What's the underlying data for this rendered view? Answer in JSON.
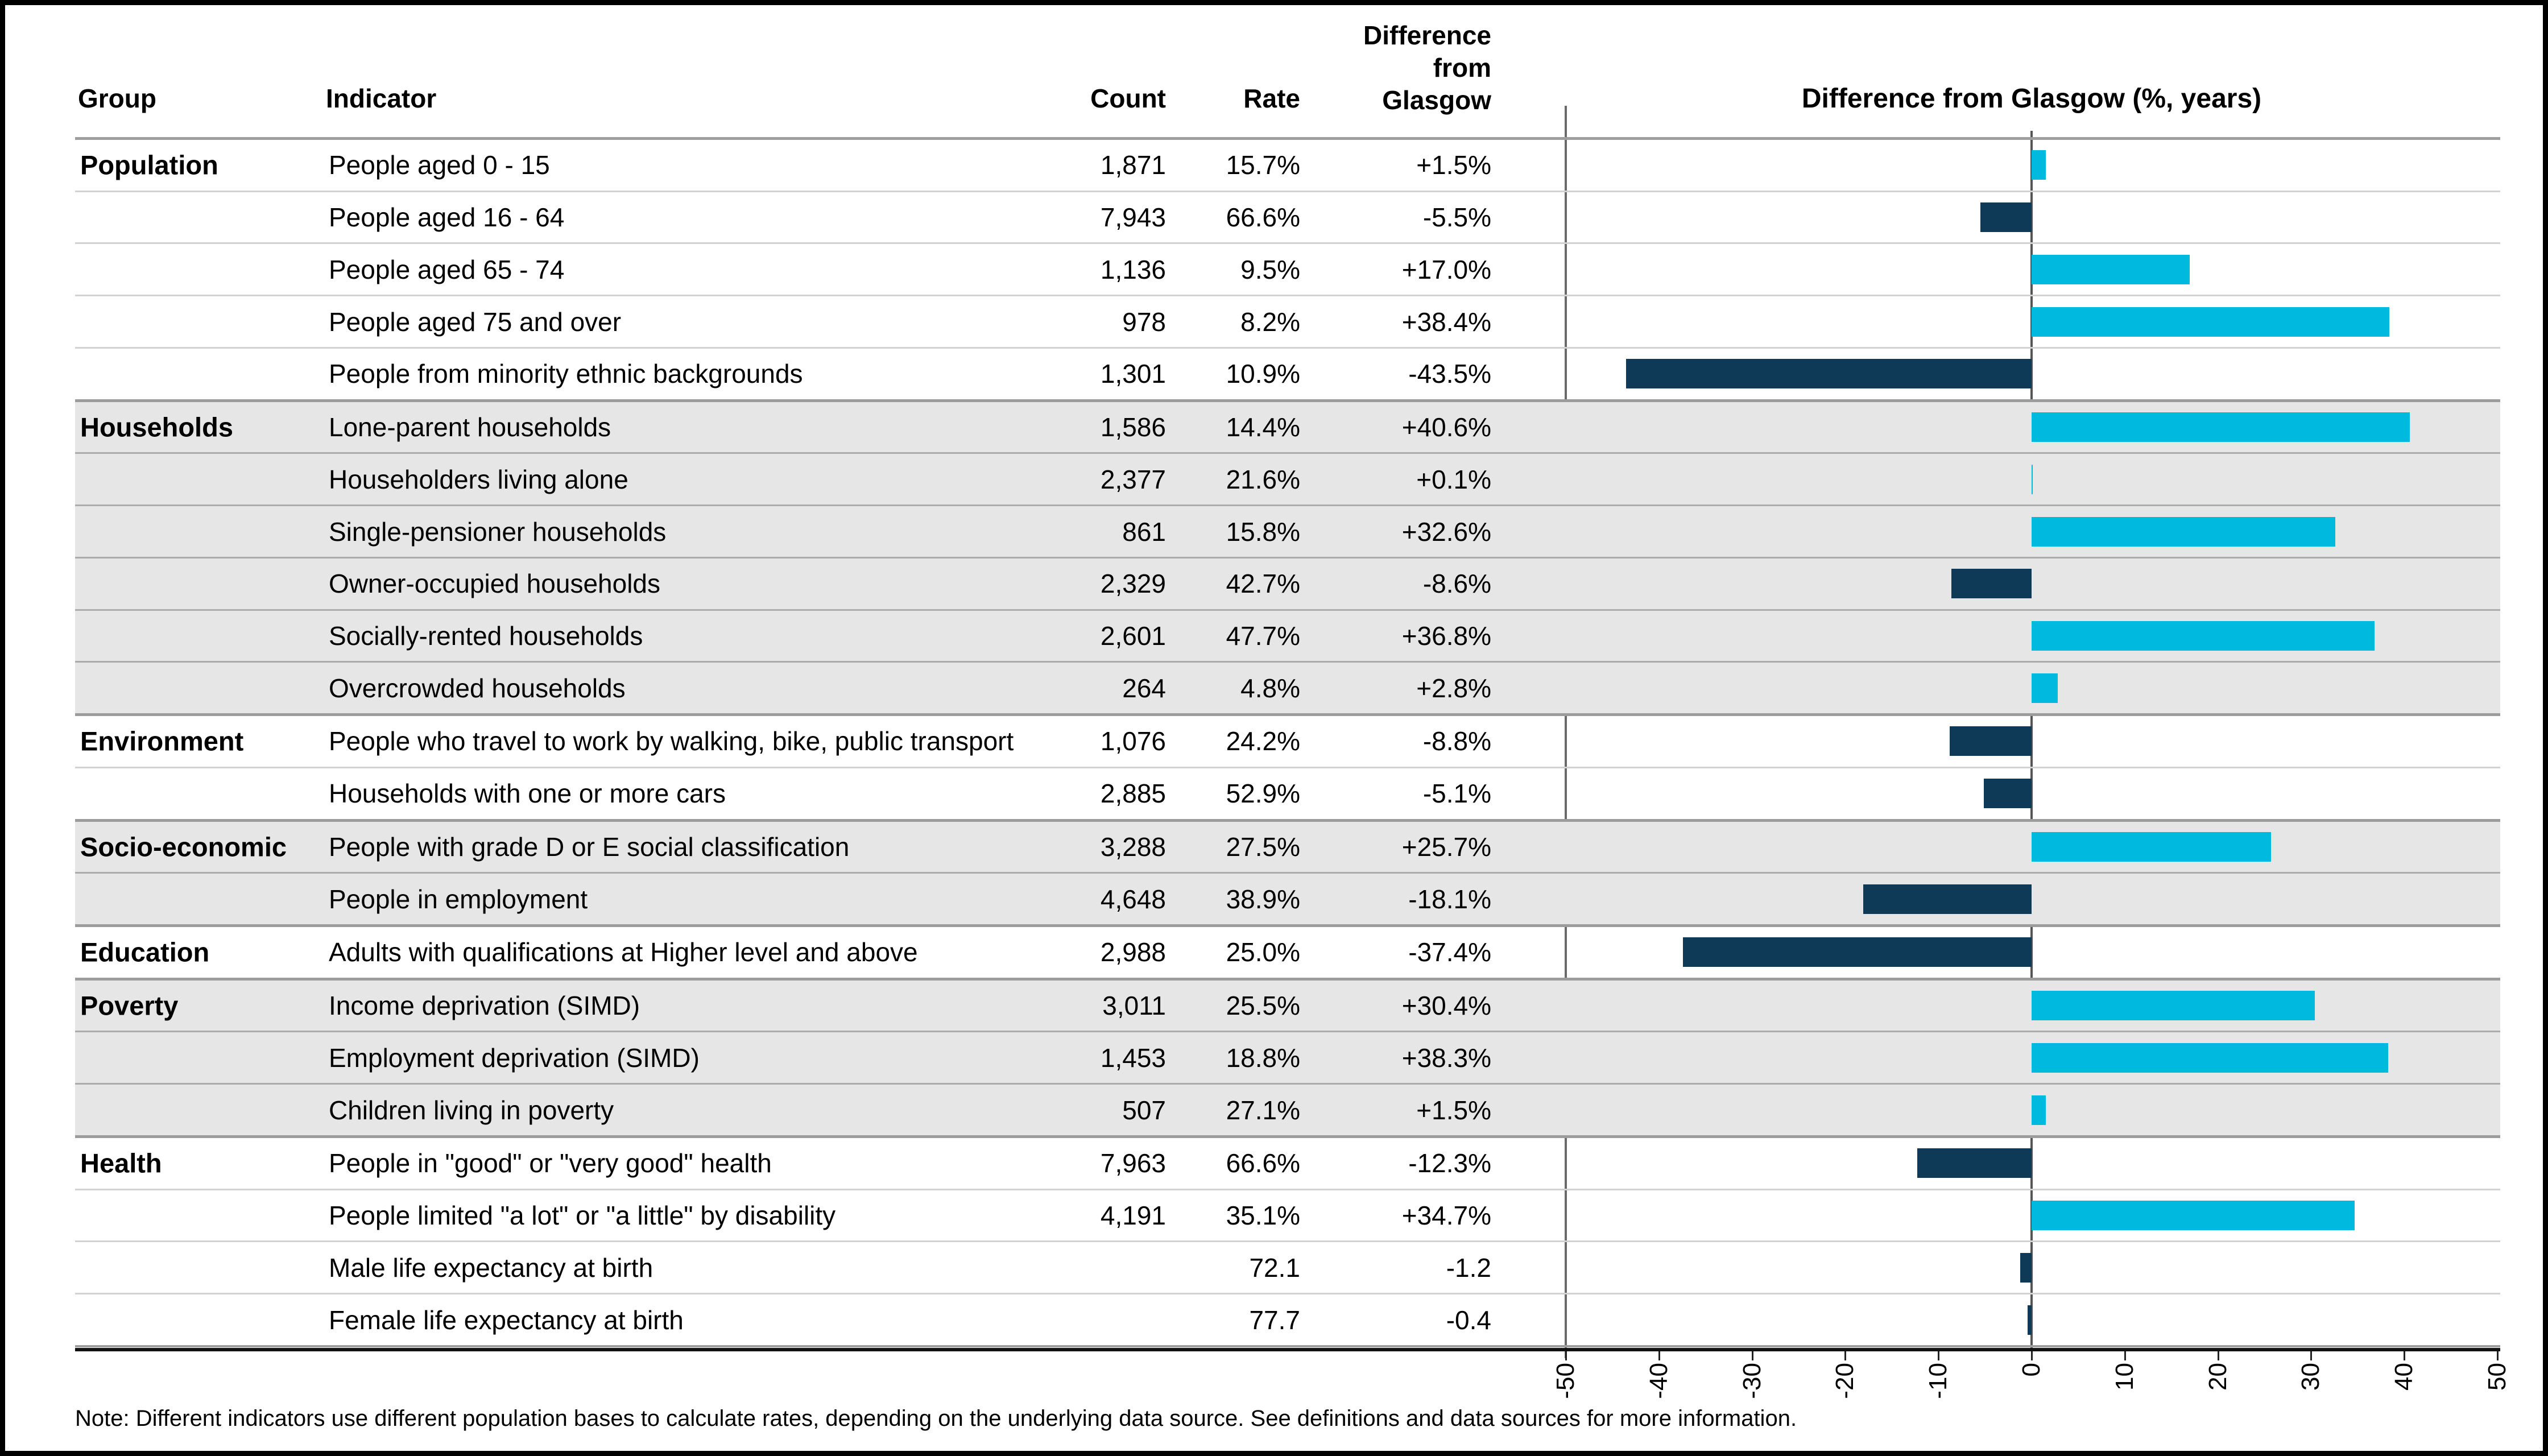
{
  "table": {
    "headers": {
      "group": "Group",
      "indicator": "Indicator",
      "count": "Count",
      "rate": "Rate",
      "difference_lines": [
        "Difference",
        "from",
        "Glasgow"
      ]
    },
    "groups": [
      {
        "name": "Population",
        "shaded": false,
        "rows": [
          {
            "indicator": "People aged 0 - 15",
            "count": "1,871",
            "rate": "15.7%",
            "difference": "+1.5%",
            "value": 1.5
          },
          {
            "indicator": "People aged 16 - 64",
            "count": "7,943",
            "rate": "66.6%",
            "difference": "-5.5%",
            "value": -5.5
          },
          {
            "indicator": "People aged 65 - 74",
            "count": "1,136",
            "rate": "9.5%",
            "difference": "+17.0%",
            "value": 17.0
          },
          {
            "indicator": "People aged 75 and over",
            "count": "978",
            "rate": "8.2%",
            "difference": "+38.4%",
            "value": 38.4
          },
          {
            "indicator": "People from minority ethnic backgrounds",
            "count": "1,301",
            "rate": "10.9%",
            "difference": "-43.5%",
            "value": -43.5
          }
        ]
      },
      {
        "name": "Households",
        "shaded": true,
        "rows": [
          {
            "indicator": "Lone-parent households",
            "count": "1,586",
            "rate": "14.4%",
            "difference": "+40.6%",
            "value": 40.6
          },
          {
            "indicator": "Householders living alone",
            "count": "2,377",
            "rate": "21.6%",
            "difference": "+0.1%",
            "value": 0.1
          },
          {
            "indicator": "Single-pensioner households",
            "count": "861",
            "rate": "15.8%",
            "difference": "+32.6%",
            "value": 32.6
          },
          {
            "indicator": "Owner-occupied households",
            "count": "2,329",
            "rate": "42.7%",
            "difference": "-8.6%",
            "value": -8.6
          },
          {
            "indicator": "Socially-rented households",
            "count": "2,601",
            "rate": "47.7%",
            "difference": "+36.8%",
            "value": 36.8
          },
          {
            "indicator": "Overcrowded households",
            "count": "264",
            "rate": "4.8%",
            "difference": "+2.8%",
            "value": 2.8
          }
        ]
      },
      {
        "name": "Environment",
        "shaded": false,
        "rows": [
          {
            "indicator": "People who travel to work by walking, bike, public transport",
            "count": "1,076",
            "rate": "24.2%",
            "difference": "-8.8%",
            "value": -8.8
          },
          {
            "indicator": "Households with one or more cars",
            "count": "2,885",
            "rate": "52.9%",
            "difference": "-5.1%",
            "value": -5.1
          }
        ]
      },
      {
        "name": "Socio-economic",
        "shaded": true,
        "rows": [
          {
            "indicator": "People with grade D or E social classification",
            "count": "3,288",
            "rate": "27.5%",
            "difference": "+25.7%",
            "value": 25.7
          },
          {
            "indicator": "People in employment",
            "count": "4,648",
            "rate": "38.9%",
            "difference": "-18.1%",
            "value": -18.1
          }
        ]
      },
      {
        "name": "Education",
        "shaded": false,
        "rows": [
          {
            "indicator": "Adults with qualifications at Higher level and above",
            "count": "2,988",
            "rate": "25.0%",
            "difference": "-37.4%",
            "value": -37.4
          }
        ]
      },
      {
        "name": "Poverty",
        "shaded": true,
        "rows": [
          {
            "indicator": "Income deprivation (SIMD)",
            "count": "3,011",
            "rate": "25.5%",
            "difference": "+30.4%",
            "value": 30.4
          },
          {
            "indicator": "Employment deprivation (SIMD)",
            "count": "1,453",
            "rate": "18.8%",
            "difference": "+38.3%",
            "value": 38.3
          },
          {
            "indicator": "Children living in poverty",
            "count": "507",
            "rate": "27.1%",
            "difference": "+1.5%",
            "value": 1.5
          }
        ]
      },
      {
        "name": "Health",
        "shaded": false,
        "rows": [
          {
            "indicator": "People in \"good\" or \"very good\" health",
            "count": "7,963",
            "rate": "66.6%",
            "difference": "-12.3%",
            "value": -12.3
          },
          {
            "indicator": "People limited \"a lot\" or \"a little\" by disability",
            "count": "4,191",
            "rate": "35.1%",
            "difference": "+34.7%",
            "value": 34.7
          },
          {
            "indicator": "Male life expectancy at birth",
            "count": "",
            "rate": "72.1",
            "difference": "-1.2",
            "value": -1.2
          },
          {
            "indicator": "Female life expectancy at birth",
            "count": "",
            "rate": "77.7",
            "difference": "-0.4",
            "value": -0.4
          }
        ]
      }
    ]
  },
  "chart": {
    "title": "Difference from Glasgow (%, years)",
    "ticks": [
      "-50",
      "-40",
      "-30",
      "-20",
      "-10",
      "0",
      "10",
      "20",
      "30",
      "40",
      "50"
    ]
  },
  "note": "Note: Different indicators use different population bases to calculate rates, depending on the underlying data source. See definitions and data sources for more information.",
  "colors": {
    "positive": "#00B9DE",
    "negative": "#0E3A57",
    "band": "#E6E6E6"
  },
  "chart_data": {
    "type": "bar",
    "orientation": "horizontal",
    "title": "Difference from Glasgow (%, years)",
    "xlabel": "",
    "ylabel": "",
    "xlim": [
      -50,
      50
    ],
    "grid": false,
    "categories": [
      "People aged 0 - 15",
      "People aged 16 - 64",
      "People aged 65 - 74",
      "People aged 75 and over",
      "People from minority ethnic backgrounds",
      "Lone-parent households",
      "Householders living alone",
      "Single-pensioner households",
      "Owner-occupied households",
      "Socially-rented households",
      "Overcrowded households",
      "People who travel to work by walking, bike, public transport",
      "Households with one or more cars",
      "People with grade D or E social classification",
      "People in employment",
      "Adults with qualifications at Higher level and above",
      "Income deprivation (SIMD)",
      "Employment deprivation (SIMD)",
      "Children living in poverty",
      "People in \"good\" or \"very good\" health",
      "People limited \"a lot\" or \"a little\" by disability",
      "Male life expectancy at birth",
      "Female life expectancy at birth"
    ],
    "values": [
      1.5,
      -5.5,
      17.0,
      38.4,
      -43.5,
      40.6,
      0.1,
      32.6,
      -8.6,
      36.8,
      2.8,
      -8.8,
      -5.1,
      25.7,
      -18.1,
      -37.4,
      30.4,
      38.3,
      1.5,
      -12.3,
      34.7,
      -1.2,
      -0.4
    ],
    "positive_color": "#00B9DE",
    "negative_color": "#0E3A57"
  }
}
